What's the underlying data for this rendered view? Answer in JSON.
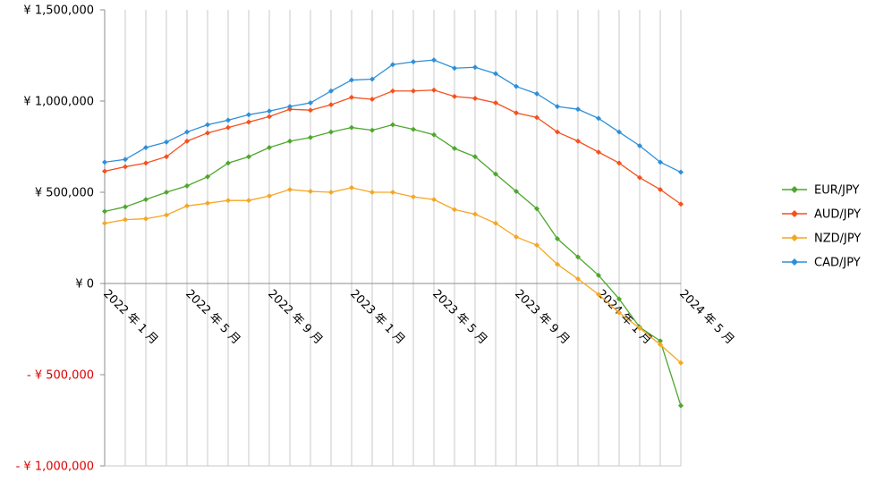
{
  "chart_data": {
    "type": "line",
    "title": "",
    "xlabel": "",
    "ylabel": "",
    "ylim": [
      -1000000,
      1500000
    ],
    "y_ticks": [
      {
        "value": 1500000,
        "label": "¥ 1,500,000",
        "color": "#000000"
      },
      {
        "value": 1000000,
        "label": "¥ 1,000,000",
        "color": "#000000"
      },
      {
        "value": 500000,
        "label": "¥ 500,000",
        "color": "#000000"
      },
      {
        "value": 0,
        "label": "¥ 0",
        "color": "#000000"
      },
      {
        "value": -500000,
        "label": "- ¥ 500,000",
        "color": "#e00000"
      },
      {
        "value": -1000000,
        "label": "- ¥ 1,000,000",
        "color": "#e00000"
      }
    ],
    "x": [
      "2022-01",
      "2022-02",
      "2022-03",
      "2022-04",
      "2022-05",
      "2022-06",
      "2022-07",
      "2022-08",
      "2022-09",
      "2022-10",
      "2022-11",
      "2022-12",
      "2023-01",
      "2023-02",
      "2023-03",
      "2023-04",
      "2023-05",
      "2023-06",
      "2023-07",
      "2023-08",
      "2023-09",
      "2023-10",
      "2023-11",
      "2023-12",
      "2024-01",
      "2024-02",
      "2024-03",
      "2024-04",
      "2024-05"
    ],
    "x_tick_labels": [
      {
        "index": 0,
        "label": "2022 年 1 月"
      },
      {
        "index": 4,
        "label": "2022 年 5 月"
      },
      {
        "index": 8,
        "label": "2022 年 9 月"
      },
      {
        "index": 12,
        "label": "2023 年 1 月"
      },
      {
        "index": 16,
        "label": "2023 年 5 月"
      },
      {
        "index": 20,
        "label": "2023 年 9 月"
      },
      {
        "index": 24,
        "label": "2024 年 1 月"
      },
      {
        "index": 28,
        "label": "2024 年 5 月"
      }
    ],
    "grid": {
      "vertical": true,
      "horizontal": false
    },
    "legend_position": "right",
    "series": [
      {
        "name": "EUR/JPY",
        "color": "#4ea72e",
        "values": [
          395000,
          420000,
          460000,
          500000,
          535000,
          585000,
          660000,
          695000,
          745000,
          780000,
          800000,
          830000,
          855000,
          840000,
          870000,
          845000,
          815000,
          740000,
          695000,
          600000,
          505000,
          410000,
          245000,
          145000,
          45000,
          -85000,
          -240000,
          -315000,
          -670000
        ]
      },
      {
        "name": "AUD/JPY",
        "color": "#f4511e",
        "values": [
          615000,
          640000,
          660000,
          695000,
          780000,
          825000,
          855000,
          885000,
          915000,
          955000,
          950000,
          980000,
          1020000,
          1010000,
          1055000,
          1055000,
          1060000,
          1025000,
          1015000,
          990000,
          935000,
          910000,
          830000,
          780000,
          720000,
          660000,
          580000,
          515000,
          435000
        ]
      },
      {
        "name": "NZD/JPY",
        "color": "#f5a623",
        "values": [
          330000,
          350000,
          355000,
          375000,
          425000,
          440000,
          455000,
          455000,
          480000,
          515000,
          505000,
          500000,
          525000,
          500000,
          500000,
          475000,
          460000,
          405000,
          380000,
          330000,
          255000,
          210000,
          105000,
          25000,
          -60000,
          -160000,
          -245000,
          -335000,
          -435000
        ]
      },
      {
        "name": "CAD/JPY",
        "color": "#2e8fd8",
        "values": [
          665000,
          680000,
          745000,
          775000,
          830000,
          870000,
          895000,
          925000,
          945000,
          970000,
          990000,
          1055000,
          1115000,
          1120000,
          1200000,
          1215000,
          1225000,
          1180000,
          1185000,
          1150000,
          1080000,
          1040000,
          970000,
          955000,
          905000,
          830000,
          755000,
          665000,
          610000
        ]
      }
    ]
  }
}
